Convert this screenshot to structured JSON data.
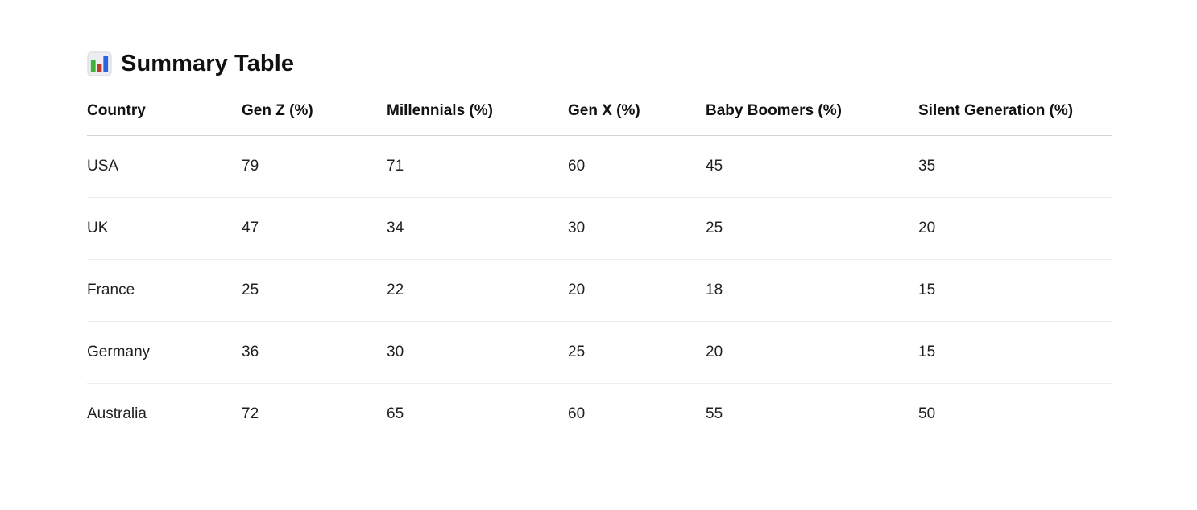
{
  "header": {
    "icon": "bar-chart-icon",
    "title": "Summary Table",
    "icon_colors": {
      "background": "#eceef1",
      "border": "#d8dadd",
      "green_bar": "#3cb43c",
      "red_bar": "#bf392b",
      "blue_bar": "#2a63dd"
    }
  },
  "table": {
    "columns": [
      "Country",
      "Gen Z (%)",
      "Millennials (%)",
      "Gen X (%)",
      "Baby Boomers (%)",
      "Silent Generation (%)"
    ],
    "rows": [
      {
        "country": "USA",
        "values": [
          "79",
          "71",
          "60",
          "45",
          "35"
        ]
      },
      {
        "country": "UK",
        "values": [
          "47",
          "34",
          "30",
          "25",
          "20"
        ]
      },
      {
        "country": "France",
        "values": [
          "25",
          "22",
          "20",
          "18",
          "15"
        ]
      },
      {
        "country": "Germany",
        "values": [
          "36",
          "30",
          "25",
          "20",
          "15"
        ]
      },
      {
        "country": "Australia",
        "values": [
          "72",
          "65",
          "60",
          "55",
          "50"
        ]
      }
    ]
  },
  "chart_data": {
    "type": "table",
    "title": "Summary Table",
    "columns": [
      "Country",
      "Gen Z (%)",
      "Millennials (%)",
      "Gen X (%)",
      "Baby Boomers (%)",
      "Silent Generation (%)"
    ],
    "rows": [
      [
        "USA",
        79,
        71,
        60,
        45,
        35
      ],
      [
        "UK",
        47,
        34,
        30,
        25,
        20
      ],
      [
        "France",
        25,
        22,
        20,
        18,
        15
      ],
      [
        "Germany",
        36,
        30,
        25,
        20,
        15
      ],
      [
        "Australia",
        72,
        65,
        60,
        55,
        50
      ]
    ]
  }
}
